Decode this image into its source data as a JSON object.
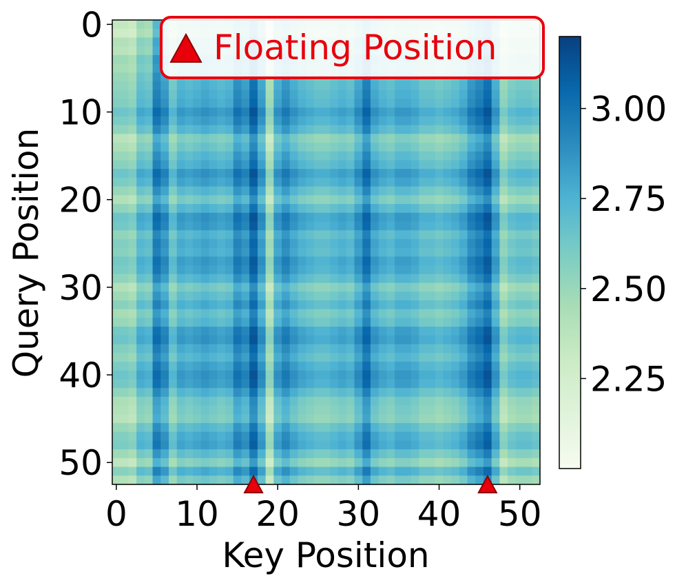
{
  "chart_data": {
    "type": "heatmap",
    "xlabel": "Key Position",
    "ylabel": "Query Position",
    "x_ticks": [
      0,
      10,
      20,
      30,
      40,
      50
    ],
    "y_ticks": [
      0,
      10,
      20,
      30,
      40,
      50
    ],
    "size": 53,
    "colormap": "GnBu",
    "colorbar": {
      "range": [
        2.0,
        3.2
      ],
      "ticks": [
        "2.25",
        "2.50",
        "2.75",
        "3.00"
      ]
    },
    "column_strengths": [
      0.2,
      0.2,
      0.15,
      0.45,
      0.4,
      0.85,
      0.7,
      0.35,
      0.55,
      0.5,
      0.55,
      0.6,
      0.55,
      0.5,
      0.55,
      0.8,
      0.7,
      1.0,
      0.65,
      0.05,
      0.6,
      0.75,
      0.6,
      0.5,
      0.45,
      0.4,
      0.4,
      0.45,
      0.5,
      0.45,
      0.65,
      0.9,
      0.6,
      0.5,
      0.45,
      0.55,
      0.55,
      0.5,
      0.4,
      0.4,
      0.35,
      0.4,
      0.45,
      0.55,
      0.75,
      0.85,
      1.0,
      0.6,
      0.15,
      0.3,
      0.35,
      0.35,
      0.3
    ],
    "row_strengths": [
      0.2,
      0.1,
      0.35,
      0.3,
      0.5,
      0.45,
      0.55,
      0.6,
      0.65,
      0.7,
      0.85,
      0.75,
      0.6,
      0.3,
      0.4,
      0.55,
      0.65,
      0.85,
      0.75,
      0.55,
      0.35,
      0.6,
      0.85,
      0.8,
      0.6,
      0.7,
      0.65,
      0.8,
      0.75,
      0.6,
      0.35,
      0.5,
      0.65,
      0.45,
      0.55,
      0.8,
      0.85,
      0.7,
      0.6,
      0.75,
      0.85,
      0.8,
      0.6,
      0.4,
      0.35,
      0.3,
      0.55,
      0.7,
      0.75,
      0.5,
      0.25,
      0.65,
      0.35
    ],
    "floating_positions": [
      17,
      46
    ],
    "legend": {
      "label": "Floating Position",
      "placement": "top-right",
      "marker": "triangle"
    }
  },
  "colors": {
    "legend_text": "#e8000b",
    "legend_border": "#e8000b",
    "marker_fill": "#e8000b",
    "marker_edge": "#8b0000"
  }
}
